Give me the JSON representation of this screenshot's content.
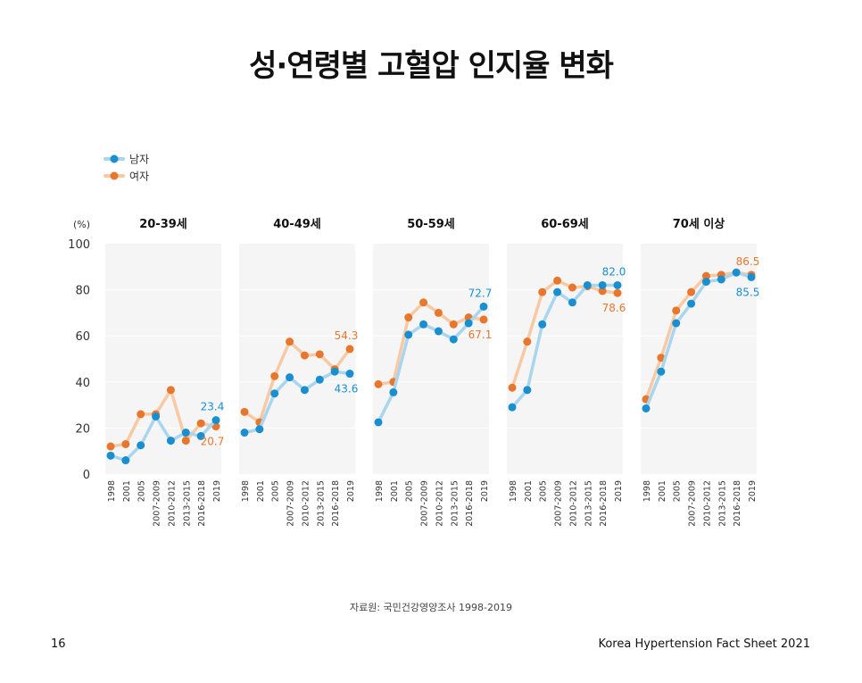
{
  "page": {
    "title": "성·연령별 고혈압 인지율 변화",
    "source": "자료원: 국민건강영양조사 1998-2019",
    "page_number": "16",
    "footer": "Korea Hypertension Fact Sheet 2021"
  },
  "colors": {
    "male": "#1a8fd0",
    "male_line": "#a9d5ee",
    "female": "#e8772e",
    "female_line": "#f7c9a4",
    "panel_bg": "#f5f5f5"
  },
  "chart_data": {
    "type": "line",
    "y_unit": "(%)",
    "ylim": [
      0,
      100
    ],
    "yticks": [
      0,
      20,
      40,
      60,
      80,
      100
    ],
    "categories": [
      "1998",
      "2001",
      "2005",
      "2007-2009",
      "2010-2012",
      "2013-2015",
      "2016-2018",
      "2019"
    ],
    "legend": {
      "position": "top-left",
      "entries": [
        "남자",
        "여자"
      ]
    },
    "panels": [
      {
        "title": "20-39세",
        "series": [
          {
            "name": "남자",
            "values": [
              8.0,
              6.0,
              12.5,
              25.0,
              14.5,
              18.0,
              16.5,
              23.4
            ]
          },
          {
            "name": "여자",
            "values": [
              12.0,
              13.0,
              26.0,
              26.0,
              36.5,
              14.5,
              22.0,
              20.7
            ]
          }
        ],
        "labels": {
          "male": "23.4",
          "female": "20.7"
        }
      },
      {
        "title": "40-49세",
        "series": [
          {
            "name": "남자",
            "values": [
              18.0,
              19.5,
              35.0,
              42.0,
              36.5,
              41.0,
              44.5,
              43.6
            ]
          },
          {
            "name": "여자",
            "values": [
              27.0,
              22.5,
              42.5,
              57.5,
              51.5,
              52.0,
              45.5,
              54.3
            ]
          }
        ],
        "labels": {
          "male": "43.6",
          "female": "54.3"
        }
      },
      {
        "title": "50-59세",
        "series": [
          {
            "name": "남자",
            "values": [
              22.5,
              35.5,
              60.5,
              65.0,
              62.0,
              58.5,
              65.5,
              72.7
            ]
          },
          {
            "name": "여자",
            "values": [
              39.0,
              40.0,
              68.0,
              74.5,
              70.0,
              65.0,
              68.0,
              67.1
            ]
          }
        ],
        "labels": {
          "male": "72.7",
          "female": "67.1"
        }
      },
      {
        "title": "60-69세",
        "series": [
          {
            "name": "남자",
            "values": [
              29.0,
              36.5,
              65.0,
              79.0,
              74.5,
              82.0,
              82.0,
              82.0
            ]
          },
          {
            "name": "여자",
            "values": [
              37.5,
              57.5,
              79.0,
              84.0,
              81.0,
              81.5,
              79.5,
              78.6
            ]
          }
        ],
        "labels": {
          "male": "82.0",
          "female": "78.6"
        }
      },
      {
        "title": "70세 이상",
        "series": [
          {
            "name": "남자",
            "values": [
              28.5,
              44.5,
              65.5,
              74.0,
              83.5,
              84.5,
              87.5,
              85.5
            ]
          },
          {
            "name": "여자",
            "values": [
              32.5,
              50.5,
              71.0,
              79.0,
              86.0,
              86.5,
              87.5,
              86.5
            ]
          }
        ],
        "labels": {
          "male": "85.5",
          "female": "86.5"
        }
      }
    ]
  }
}
